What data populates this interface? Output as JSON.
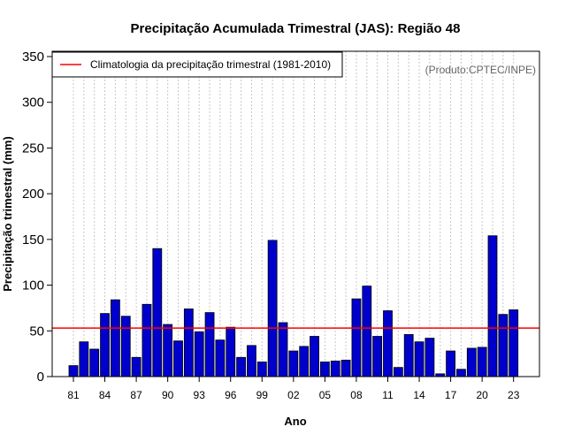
{
  "chart_data": {
    "type": "bar",
    "title": "Precipitação Acumulada Trimestral (JAS): Região 48",
    "xlabel": "Ano",
    "ylabel": "Precipitação trimestral (mm)",
    "ylim": [
      0,
      350
    ],
    "yticks": [
      0,
      50,
      100,
      150,
      200,
      250,
      300,
      350
    ],
    "grid": "vertical dotted",
    "credit": "(Produto:CPTEC/INPE)",
    "bar_color": "#0000cc",
    "climatology": {
      "label": "Climatologia da precipitação trimestral (1981-2010)",
      "value": 53,
      "color": "#ff0000"
    },
    "legend_position": "top-left",
    "years": [
      "81",
      "82",
      "83",
      "84",
      "85",
      "86",
      "87",
      "88",
      "89",
      "90",
      "91",
      "92",
      "93",
      "94",
      "95",
      "96",
      "97",
      "98",
      "99",
      "00",
      "01",
      "02",
      "03",
      "04",
      "05",
      "06",
      "07",
      "08",
      "09",
      "10",
      "11",
      "12",
      "13",
      "14",
      "15",
      "16",
      "17",
      "18",
      "19",
      "20",
      "21",
      "22",
      "23"
    ],
    "tick_labels": [
      "81",
      "84",
      "87",
      "90",
      "93",
      "96",
      "99",
      "02",
      "05",
      "08",
      "11",
      "14",
      "17",
      "20",
      "23"
    ],
    "values": [
      12,
      38,
      30,
      69,
      84,
      66,
      21,
      79,
      140,
      57,
      39,
      74,
      49,
      70,
      40,
      54,
      21,
      34,
      16,
      149,
      59,
      28,
      33,
      44,
      16,
      17,
      18,
      85,
      99,
      44,
      72,
      10,
      46,
      38,
      42,
      3,
      28,
      8,
      31,
      32,
      154,
      68,
      73
    ]
  }
}
